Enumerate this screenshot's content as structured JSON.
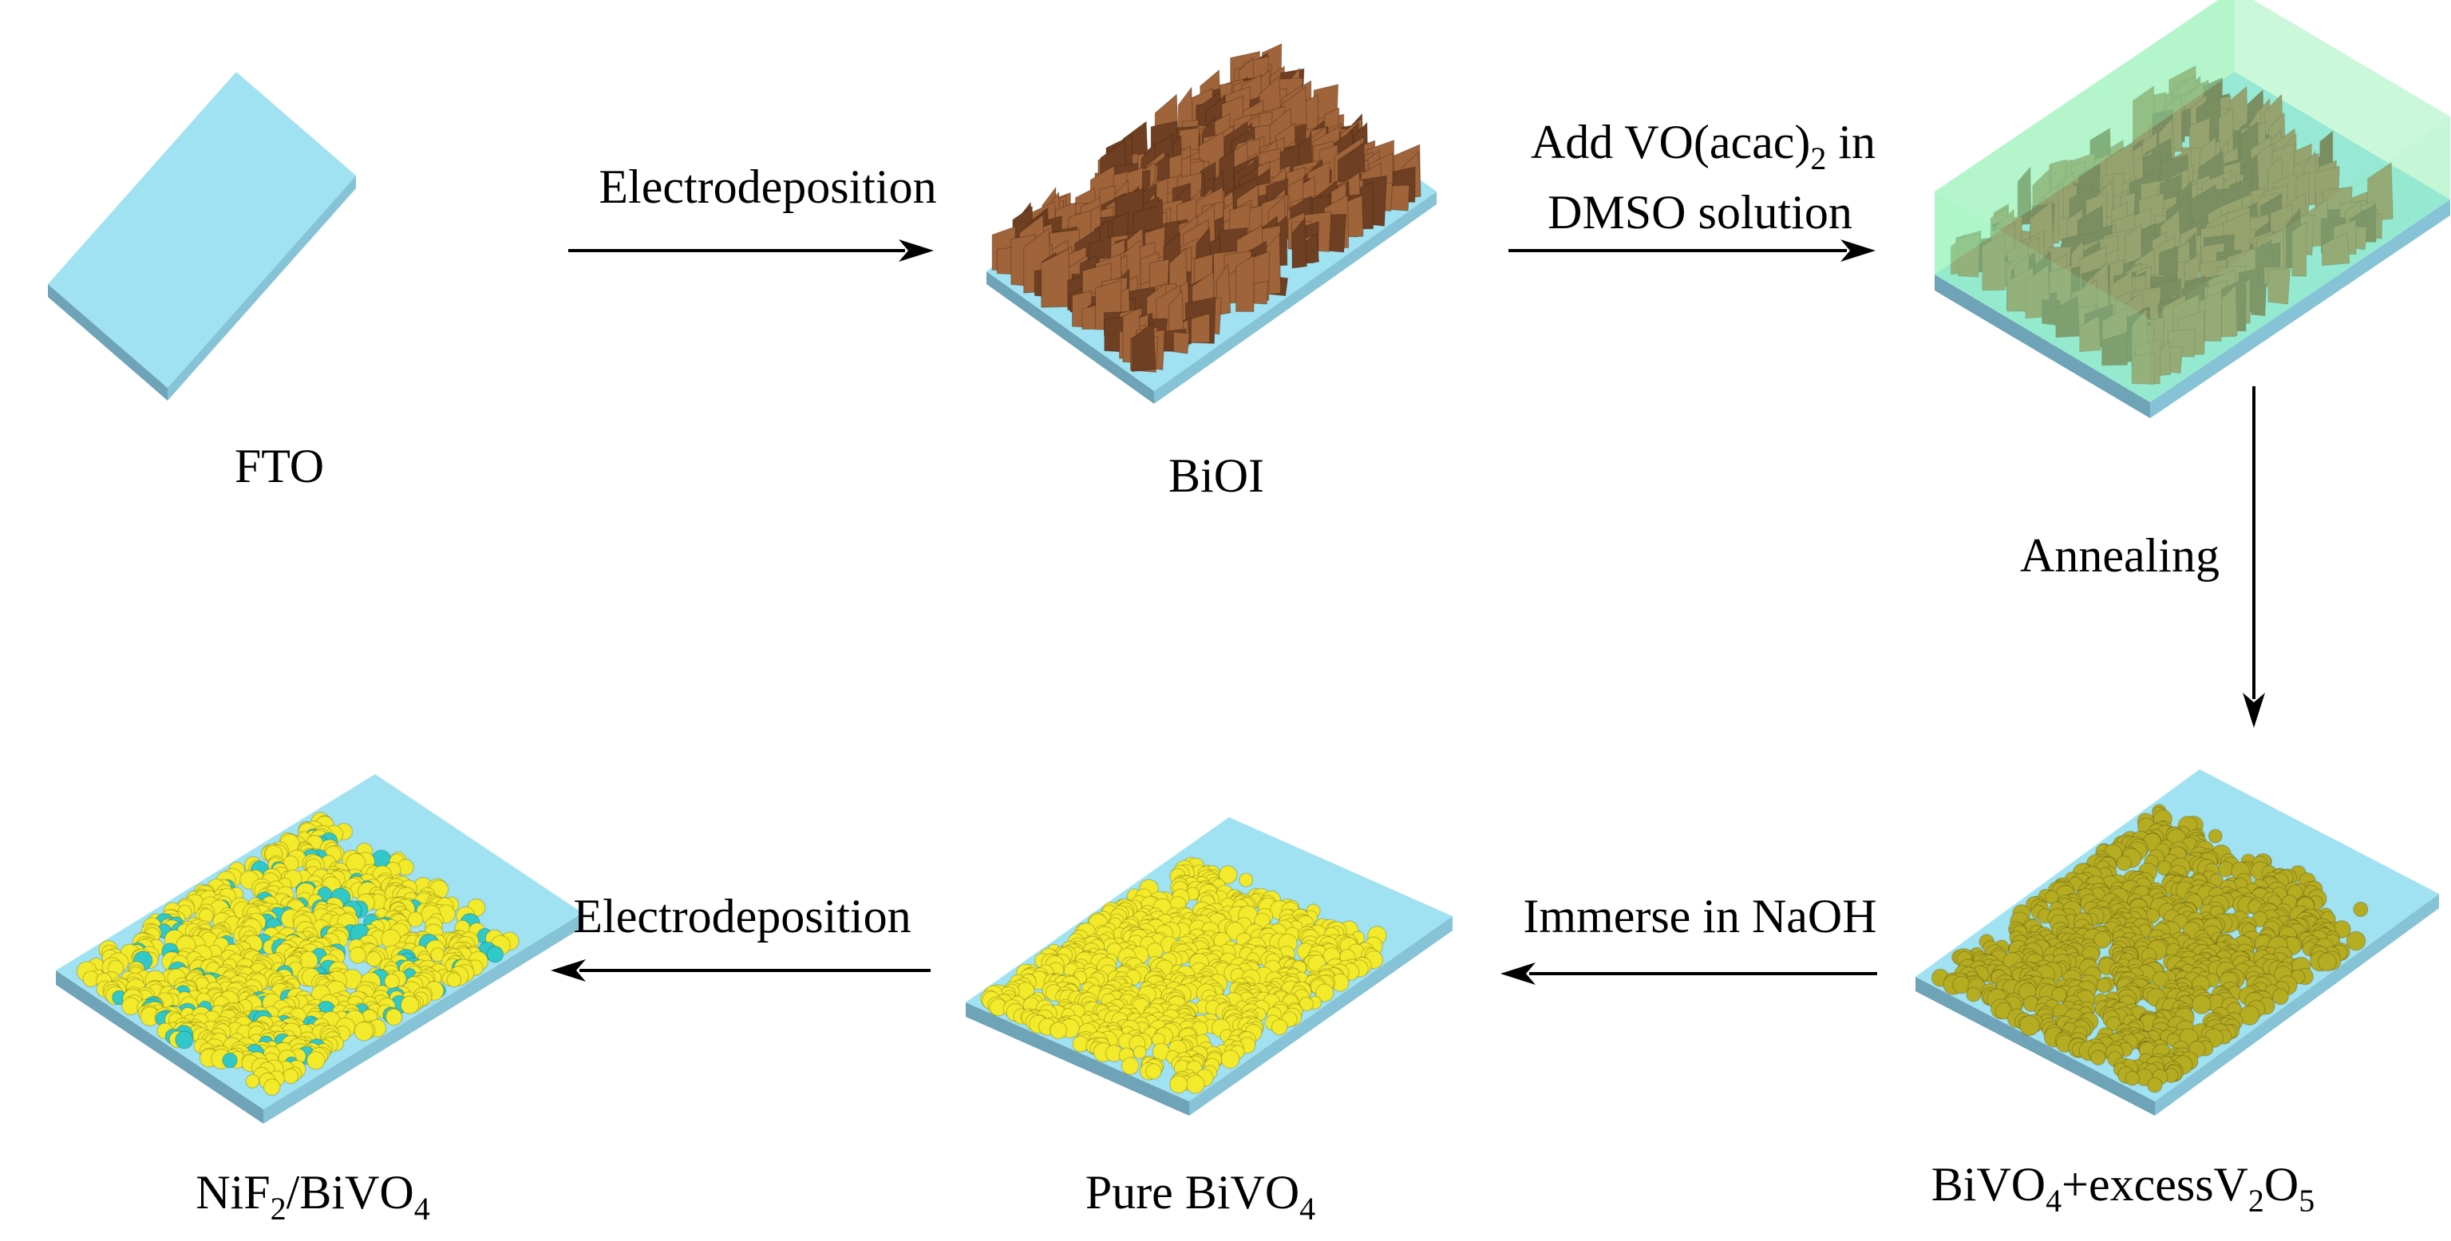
{
  "colors": {
    "substrate_top": "#a0e2f2",
    "substrate_side_dark": "#6fa3b7",
    "substrate_side_light": "#86c3d6",
    "bioi_flake": "#a0643a",
    "bioi_flake_dark": "#6e3f22",
    "bivo4_v2o5_particle": "#b5ac22",
    "bivo4_particle": "#f2ea2a",
    "nif2_particle": "#30c8c8",
    "vo_solution": "#8cf0b0",
    "arrow": "#000000"
  },
  "stages": {
    "fto": {
      "parts": [
        {
          "t": "FTO"
        }
      ]
    },
    "bioi": {
      "parts": [
        {
          "t": "BiOI"
        }
      ]
    },
    "bivo4_v2o5": {
      "parts": [
        {
          "t": "BiVO"
        },
        {
          "t": "4",
          "sub": true
        },
        {
          "t": "+excessV"
        },
        {
          "t": "2",
          "sub": true
        },
        {
          "t": "O"
        },
        {
          "t": "5",
          "sub": true
        }
      ]
    },
    "pure_bivo4": {
      "parts": [
        {
          "t": "Pure BiVO"
        },
        {
          "t": "4",
          "sub": true
        }
      ]
    },
    "nif2_bivo4": {
      "parts": [
        {
          "t": "NiF"
        },
        {
          "t": "2",
          "sub": true
        },
        {
          "t": "/BiVO"
        },
        {
          "t": "4",
          "sub": true
        }
      ]
    }
  },
  "steps": {
    "electrodeposition_1": {
      "parts": [
        {
          "t": "Electrodeposition"
        }
      ]
    },
    "add_vo_line1": {
      "parts": [
        {
          "t": "Add VO(acac)"
        },
        {
          "t": "2",
          "sub": true
        },
        {
          "t": " in"
        }
      ]
    },
    "add_vo_line2": {
      "parts": [
        {
          "t": "DMSO solution"
        }
      ]
    },
    "annealing": {
      "parts": [
        {
          "t": "Annealing"
        }
      ]
    },
    "immerse": {
      "parts": [
        {
          "t": "Immerse in NaOH"
        }
      ]
    },
    "electrodeposition_2": {
      "parts": [
        {
          "t": "Electrodeposition"
        }
      ]
    }
  }
}
